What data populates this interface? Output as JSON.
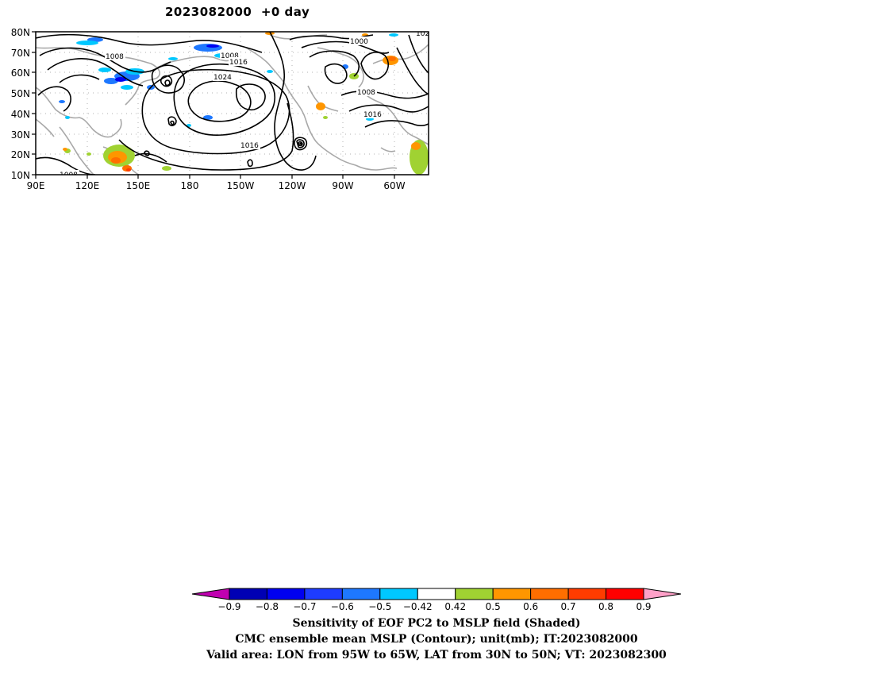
{
  "title": "2023082000  +0 day",
  "map": {
    "y_ticks": [
      "80N",
      "70N",
      "60N",
      "50N",
      "40N",
      "30N",
      "20N",
      "10N"
    ],
    "x_ticks": [
      "90E",
      "120E",
      "150E",
      "180",
      "150W",
      "120W",
      "90W",
      "60W"
    ],
    "contour_labels": [
      "1008",
      "1008",
      "1016",
      "1024",
      "1000",
      "1008",
      "1016",
      "1016",
      "1008",
      "102"
    ],
    "contour_color": "#000000",
    "coastline_color": "#a8a8a8"
  },
  "colorbar": {
    "labels": [
      "-0.9",
      "-0.8",
      "-0.7",
      "-0.6",
      "-0.5",
      "-0.42",
      "0.42",
      "0.5",
      "0.6",
      "0.7",
      "0.8",
      "0.9"
    ],
    "colors": [
      "#c000b0",
      "#0000b4",
      "#0000f0",
      "#1e3cff",
      "#1e78ff",
      "#00c8ff",
      "#ffffff",
      "#a0d232",
      "#ff9600",
      "#ff6e00",
      "#ff3c00",
      "#ff0000",
      "#ffa0c8"
    ]
  },
  "caption": {
    "line1": "Sensitivity of EOF PC2 to MSLP field (Shaded)",
    "line2": "CMC ensemble mean MSLP (Contour); unit(mb); IT:2023082000",
    "line3": "Valid area: LON from 95W to 65W, LAT from 30N to 50N; VT: 2023082300"
  }
}
